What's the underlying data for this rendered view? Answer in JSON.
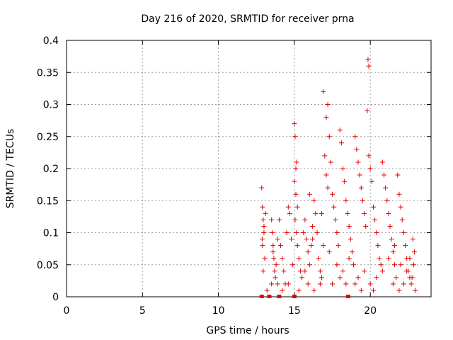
{
  "chart_data": {
    "type": "scatter",
    "title": "Day 216 of 2020, SRMTID for receiver prna",
    "xlabel": "GPS time / hours",
    "ylabel": "SRMTID / TECUs",
    "xlim": [
      0,
      24
    ],
    "ylim": [
      0,
      0.4
    ],
    "xticks": [
      0,
      5,
      10,
      15,
      20
    ],
    "xtick_labels": [
      "0",
      "5",
      "10",
      "15",
      "20"
    ],
    "yticks": [
      0,
      0.05,
      0.1,
      0.15,
      0.2,
      0.25,
      0.3,
      0.35,
      0.4
    ],
    "ytick_labels": [
      "0",
      "0.05",
      "0.1",
      "0.15",
      "0.2",
      "0.25",
      "0.3",
      "0.35",
      "0.4"
    ],
    "grid": true,
    "marker": "+",
    "color": "#e00000",
    "series": [
      {
        "name": "SRMTID",
        "points": [
          [
            12.85,
            0.17
          ],
          [
            12.9,
            0.14
          ],
          [
            12.95,
            0.12
          ],
          [
            13.0,
            0.1
          ],
          [
            12.9,
            0.08
          ],
          [
            13.05,
            0.06
          ],
          [
            12.95,
            0.04
          ],
          [
            13.1,
            0.13
          ],
          [
            13.0,
            0.11
          ],
          [
            12.88,
            0.09
          ],
          [
            13.5,
            0.12
          ],
          [
            13.55,
            0.1
          ],
          [
            13.6,
            0.08
          ],
          [
            13.65,
            0.06
          ],
          [
            13.7,
            0.04
          ],
          [
            13.75,
            0.03
          ],
          [
            13.8,
            0.05
          ],
          [
            13.5,
            0.02
          ],
          [
            13.6,
            0.07
          ],
          [
            13.9,
            0.09
          ],
          [
            14.0,
            0.12
          ],
          [
            14.1,
            0.08
          ],
          [
            14.2,
            0.06
          ],
          [
            14.3,
            0.04
          ],
          [
            14.4,
            0.02
          ],
          [
            14.5,
            0.1
          ],
          [
            14.6,
            0.14
          ],
          [
            14.7,
            0.13
          ],
          [
            14.8,
            0.09
          ],
          [
            14.9,
            0.05
          ],
          [
            15.0,
            0.27
          ],
          [
            15.05,
            0.25
          ],
          [
            15.1,
            0.2
          ],
          [
            15.15,
            0.21
          ],
          [
            15.0,
            0.18
          ],
          [
            15.1,
            0.16
          ],
          [
            15.2,
            0.14
          ],
          [
            15.05,
            0.12
          ],
          [
            15.15,
            0.1
          ],
          [
            15.2,
            0.08
          ],
          [
            15.3,
            0.06
          ],
          [
            15.4,
            0.04
          ],
          [
            15.5,
            0.03
          ],
          [
            15.6,
            0.1
          ],
          [
            15.7,
            0.12
          ],
          [
            15.8,
            0.09
          ],
          [
            15.9,
            0.07
          ],
          [
            16.0,
            0.05
          ],
          [
            16.1,
            0.08
          ],
          [
            16.2,
            0.11
          ],
          [
            16.3,
            0.15
          ],
          [
            16.4,
            0.13
          ],
          [
            16.5,
            0.1
          ],
          [
            16.6,
            0.06
          ],
          [
            16.7,
            0.04
          ],
          [
            16.8,
            0.03
          ],
          [
            16.9,
            0.08
          ],
          [
            17.0,
            0.22
          ],
          [
            17.1,
            0.19
          ],
          [
            17.2,
            0.17
          ],
          [
            16.9,
            0.32
          ],
          [
            17.1,
            0.28
          ],
          [
            17.2,
            0.3
          ],
          [
            17.3,
            0.25
          ],
          [
            17.4,
            0.21
          ],
          [
            17.5,
            0.16
          ],
          [
            17.6,
            0.14
          ],
          [
            17.7,
            0.12
          ],
          [
            17.8,
            0.1
          ],
          [
            17.9,
            0.08
          ],
          [
            18.0,
            0.26
          ],
          [
            18.1,
            0.24
          ],
          [
            18.2,
            0.2
          ],
          [
            18.3,
            0.18
          ],
          [
            18.4,
            0.15
          ],
          [
            18.5,
            0.13
          ],
          [
            18.6,
            0.11
          ],
          [
            18.7,
            0.09
          ],
          [
            18.8,
            0.07
          ],
          [
            18.9,
            0.05
          ],
          [
            19.0,
            0.25
          ],
          [
            19.1,
            0.23
          ],
          [
            19.2,
            0.21
          ],
          [
            19.3,
            0.19
          ],
          [
            19.4,
            0.17
          ],
          [
            19.5,
            0.15
          ],
          [
            19.6,
            0.13
          ],
          [
            19.7,
            0.11
          ],
          [
            19.8,
            0.29
          ],
          [
            19.9,
            0.22
          ],
          [
            19.85,
            0.37
          ],
          [
            19.9,
            0.36
          ],
          [
            20.0,
            0.2
          ],
          [
            20.1,
            0.18
          ],
          [
            20.2,
            0.14
          ],
          [
            20.3,
            0.12
          ],
          [
            20.4,
            0.1
          ],
          [
            20.5,
            0.08
          ],
          [
            20.6,
            0.06
          ],
          [
            20.7,
            0.05
          ],
          [
            20.8,
            0.21
          ],
          [
            20.9,
            0.19
          ],
          [
            21.0,
            0.17
          ],
          [
            21.1,
            0.15
          ],
          [
            21.2,
            0.13
          ],
          [
            21.3,
            0.11
          ],
          [
            21.4,
            0.09
          ],
          [
            21.5,
            0.07
          ],
          [
            21.6,
            0.05
          ],
          [
            21.7,
            0.03
          ],
          [
            21.8,
            0.19
          ],
          [
            21.9,
            0.16
          ],
          [
            22.0,
            0.14
          ],
          [
            22.1,
            0.12
          ],
          [
            22.2,
            0.1
          ],
          [
            22.3,
            0.08
          ],
          [
            22.4,
            0.06
          ],
          [
            22.5,
            0.04
          ],
          [
            22.6,
            0.03
          ],
          [
            22.7,
            0.02
          ],
          [
            22.8,
            0.09
          ],
          [
            22.9,
            0.07
          ],
          [
            22.85,
            0.05
          ],
          [
            22.75,
            0.03
          ],
          [
            22.95,
            0.01
          ],
          [
            22.6,
            0.06
          ],
          [
            22.4,
            0.04
          ],
          [
            22.2,
            0.02
          ],
          [
            21.9,
            0.01
          ],
          [
            21.5,
            0.02
          ],
          [
            16.0,
            0.16
          ],
          [
            16.2,
            0.09
          ],
          [
            16.8,
            0.13
          ],
          [
            17.3,
            0.07
          ],
          [
            17.8,
            0.05
          ],
          [
            18.2,
            0.04
          ],
          [
            18.6,
            0.06
          ],
          [
            19.2,
            0.03
          ],
          [
            19.6,
            0.04
          ],
          [
            20.0,
            0.02
          ],
          [
            20.4,
            0.03
          ],
          [
            20.8,
            0.04
          ],
          [
            21.2,
            0.06
          ],
          [
            21.6,
            0.08
          ],
          [
            22.0,
            0.05
          ],
          [
            15.7,
            0.04
          ],
          [
            15.9,
            0.02
          ],
          [
            16.3,
            0.01
          ],
          [
            16.7,
            0.02
          ],
          [
            17.5,
            0.02
          ],
          [
            18.0,
            0.03
          ],
          [
            18.4,
            0.02
          ],
          [
            19.0,
            0.02
          ],
          [
            19.4,
            0.01
          ],
          [
            20.2,
            0.01
          ],
          [
            14.2,
            0.01
          ],
          [
            14.6,
            0.02
          ],
          [
            15.3,
            0.01
          ],
          [
            13.2,
            0.01
          ],
          [
            13.9,
            0.02
          ]
        ],
        "zero_points": [
          12.85,
          13.35,
          14.0,
          15.0,
          18.55
        ]
      }
    ]
  }
}
